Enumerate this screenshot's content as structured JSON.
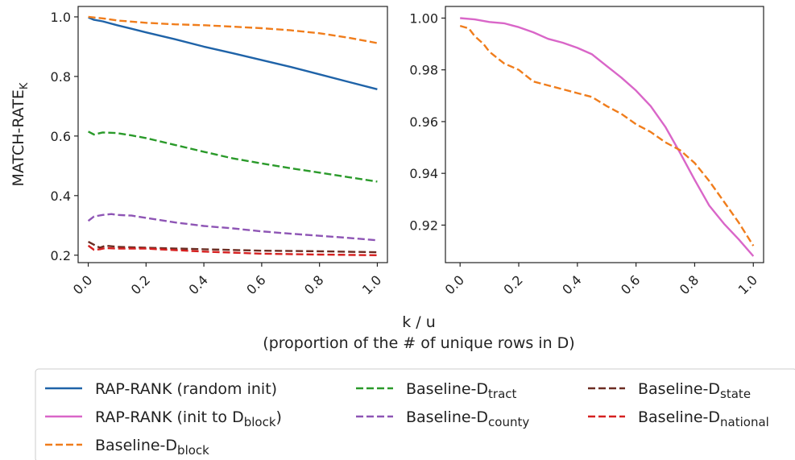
{
  "chart_data": {
    "type": "line",
    "xlabel": "k / u",
    "xlabel_sub": "(proportion of the # of unique rows in D)",
    "ylabel": {
      "main": "MATCH-RATE",
      "sub": "K"
    },
    "grid": false,
    "legend_placement": "bottom",
    "legend": [
      {
        "series": "rap_random",
        "label": "RAP-RANK (random init)",
        "sub": ""
      },
      {
        "series": "rap_block",
        "label": "RAP-RANK (init to D",
        "sub": "block",
        "suffix": ")"
      },
      {
        "series": "base_block",
        "label": "Baseline-D",
        "sub": "block"
      },
      {
        "series": "base_tract",
        "label": "Baseline-D",
        "sub": "tract"
      },
      {
        "series": "base_county",
        "label": "Baseline-D",
        "sub": "county"
      },
      {
        "series": "base_state",
        "label": "Baseline-D",
        "sub": "state"
      },
      {
        "series": "base_national",
        "label": "Baseline-D",
        "sub": "national"
      }
    ],
    "series_styles": {
      "rap_random": {
        "color": "#1f63a8",
        "dash": "solid"
      },
      "rap_block": {
        "color": "#d966c8",
        "dash": "solid"
      },
      "base_block": {
        "color": "#f07d1c",
        "dash": "dashed"
      },
      "base_tract": {
        "color": "#2a9a2a",
        "dash": "dashed"
      },
      "base_county": {
        "color": "#8e55b5",
        "dash": "dashed"
      },
      "base_state": {
        "color": "#6b2c22",
        "dash": "dashed"
      },
      "base_national": {
        "color": "#d62020",
        "dash": "dashed"
      }
    },
    "panels": [
      {
        "id": "left",
        "xlim": [
          -0.035,
          1.035
        ],
        "ylim": [
          0.175,
          1.035
        ],
        "xticks": [
          0.0,
          0.2,
          0.4,
          0.6,
          0.8,
          1.0
        ],
        "xtick_labels": [
          "0.0",
          "0.2",
          "0.4",
          "0.6",
          "0.8",
          "1.0"
        ],
        "yticks": [
          0.2,
          0.4,
          0.6,
          0.8,
          1.0
        ],
        "ytick_labels": [
          "0.2",
          "0.4",
          "0.6",
          "0.8",
          "1.0"
        ],
        "series": [
          {
            "key": "rap_random",
            "x": [
              0,
              0.02,
              0.05,
              0.1,
              0.15,
              0.2,
              0.3,
              0.4,
              0.5,
              0.6,
              0.7,
              0.8,
              0.9,
              1.0
            ],
            "y": [
              0.998,
              0.99,
              0.985,
              0.972,
              0.96,
              0.948,
              0.925,
              0.9,
              0.878,
              0.855,
              0.832,
              0.807,
              0.782,
              0.757
            ]
          },
          {
            "key": "base_block",
            "x": [
              0,
              0.02,
              0.05,
              0.1,
              0.2,
              0.3,
              0.4,
              0.5,
              0.6,
              0.7,
              0.8,
              0.9,
              1.0
            ],
            "y": [
              1.0,
              0.998,
              0.995,
              0.988,
              0.98,
              0.975,
              0.972,
              0.967,
              0.962,
              0.955,
              0.945,
              0.93,
              0.912
            ]
          },
          {
            "key": "base_tract",
            "x": [
              0,
              0.02,
              0.05,
              0.1,
              0.15,
              0.2,
              0.3,
              0.4,
              0.5,
              0.6,
              0.7,
              0.8,
              0.9,
              1.0
            ],
            "y": [
              0.615,
              0.605,
              0.612,
              0.61,
              0.602,
              0.593,
              0.57,
              0.547,
              0.525,
              0.508,
              0.492,
              0.477,
              0.462,
              0.447
            ]
          },
          {
            "key": "base_county",
            "x": [
              0,
              0.02,
              0.05,
              0.08,
              0.1,
              0.15,
              0.2,
              0.3,
              0.4,
              0.5,
              0.6,
              0.7,
              0.8,
              0.9,
              1.0
            ],
            "y": [
              0.315,
              0.33,
              0.335,
              0.338,
              0.335,
              0.333,
              0.325,
              0.31,
              0.298,
              0.29,
              0.28,
              0.272,
              0.265,
              0.258,
              0.25
            ]
          },
          {
            "key": "base_state",
            "x": [
              0,
              0.02,
              0.04,
              0.06,
              0.1,
              0.2,
              0.4,
              0.6,
              0.8,
              1.0
            ],
            "y": [
              0.245,
              0.235,
              0.225,
              0.232,
              0.228,
              0.225,
              0.22,
              0.215,
              0.213,
              0.21
            ]
          },
          {
            "key": "base_national",
            "x": [
              0,
              0.02,
              0.04,
              0.06,
              0.1,
              0.2,
              0.4,
              0.6,
              0.8,
              1.0
            ],
            "y": [
              0.232,
              0.218,
              0.22,
              0.224,
              0.222,
              0.222,
              0.212,
              0.205,
              0.202,
              0.2
            ]
          }
        ]
      },
      {
        "id": "right",
        "xlim": [
          -0.05,
          1.035
        ],
        "ylim": [
          0.9055,
          1.0045
        ],
        "xticks": [
          0.0,
          0.2,
          0.4,
          0.6,
          0.8,
          1.0
        ],
        "xtick_labels": [
          "0.0",
          "0.2",
          "0.4",
          "0.6",
          "0.8",
          "1.0"
        ],
        "yticks": [
          0.92,
          0.94,
          0.96,
          0.98,
          1.0
        ],
        "ytick_labels": [
          "0.92",
          "0.94",
          "0.96",
          "0.98",
          "1.00"
        ],
        "series": [
          {
            "key": "rap_block",
            "x": [
              0,
              0.05,
              0.1,
              0.15,
              0.2,
              0.25,
              0.3,
              0.35,
              0.4,
              0.45,
              0.5,
              0.55,
              0.6,
              0.65,
              0.7,
              0.75,
              0.8,
              0.85,
              0.9,
              0.95,
              1.0
            ],
            "y": [
              1.0,
              0.9995,
              0.9985,
              0.998,
              0.9965,
              0.9945,
              0.992,
              0.9905,
              0.9885,
              0.986,
              0.9815,
              0.977,
              0.972,
              0.966,
              0.958,
              0.948,
              0.9375,
              0.9275,
              0.9205,
              0.9145,
              0.908
            ]
          },
          {
            "key": "base_block",
            "x": [
              0,
              0.03,
              0.05,
              0.08,
              0.1,
              0.15,
              0.2,
              0.25,
              0.3,
              0.35,
              0.4,
              0.45,
              0.5,
              0.55,
              0.6,
              0.65,
              0.7,
              0.75,
              0.8,
              0.85,
              0.9,
              0.95,
              1.0
            ],
            "y": [
              0.997,
              0.996,
              0.993,
              0.99,
              0.987,
              0.9825,
              0.98,
              0.9755,
              0.974,
              0.9725,
              0.971,
              0.9695,
              0.966,
              0.963,
              0.959,
              0.956,
              0.952,
              0.949,
              0.944,
              0.937,
              0.929,
              0.921,
              0.912
            ]
          }
        ]
      }
    ]
  }
}
